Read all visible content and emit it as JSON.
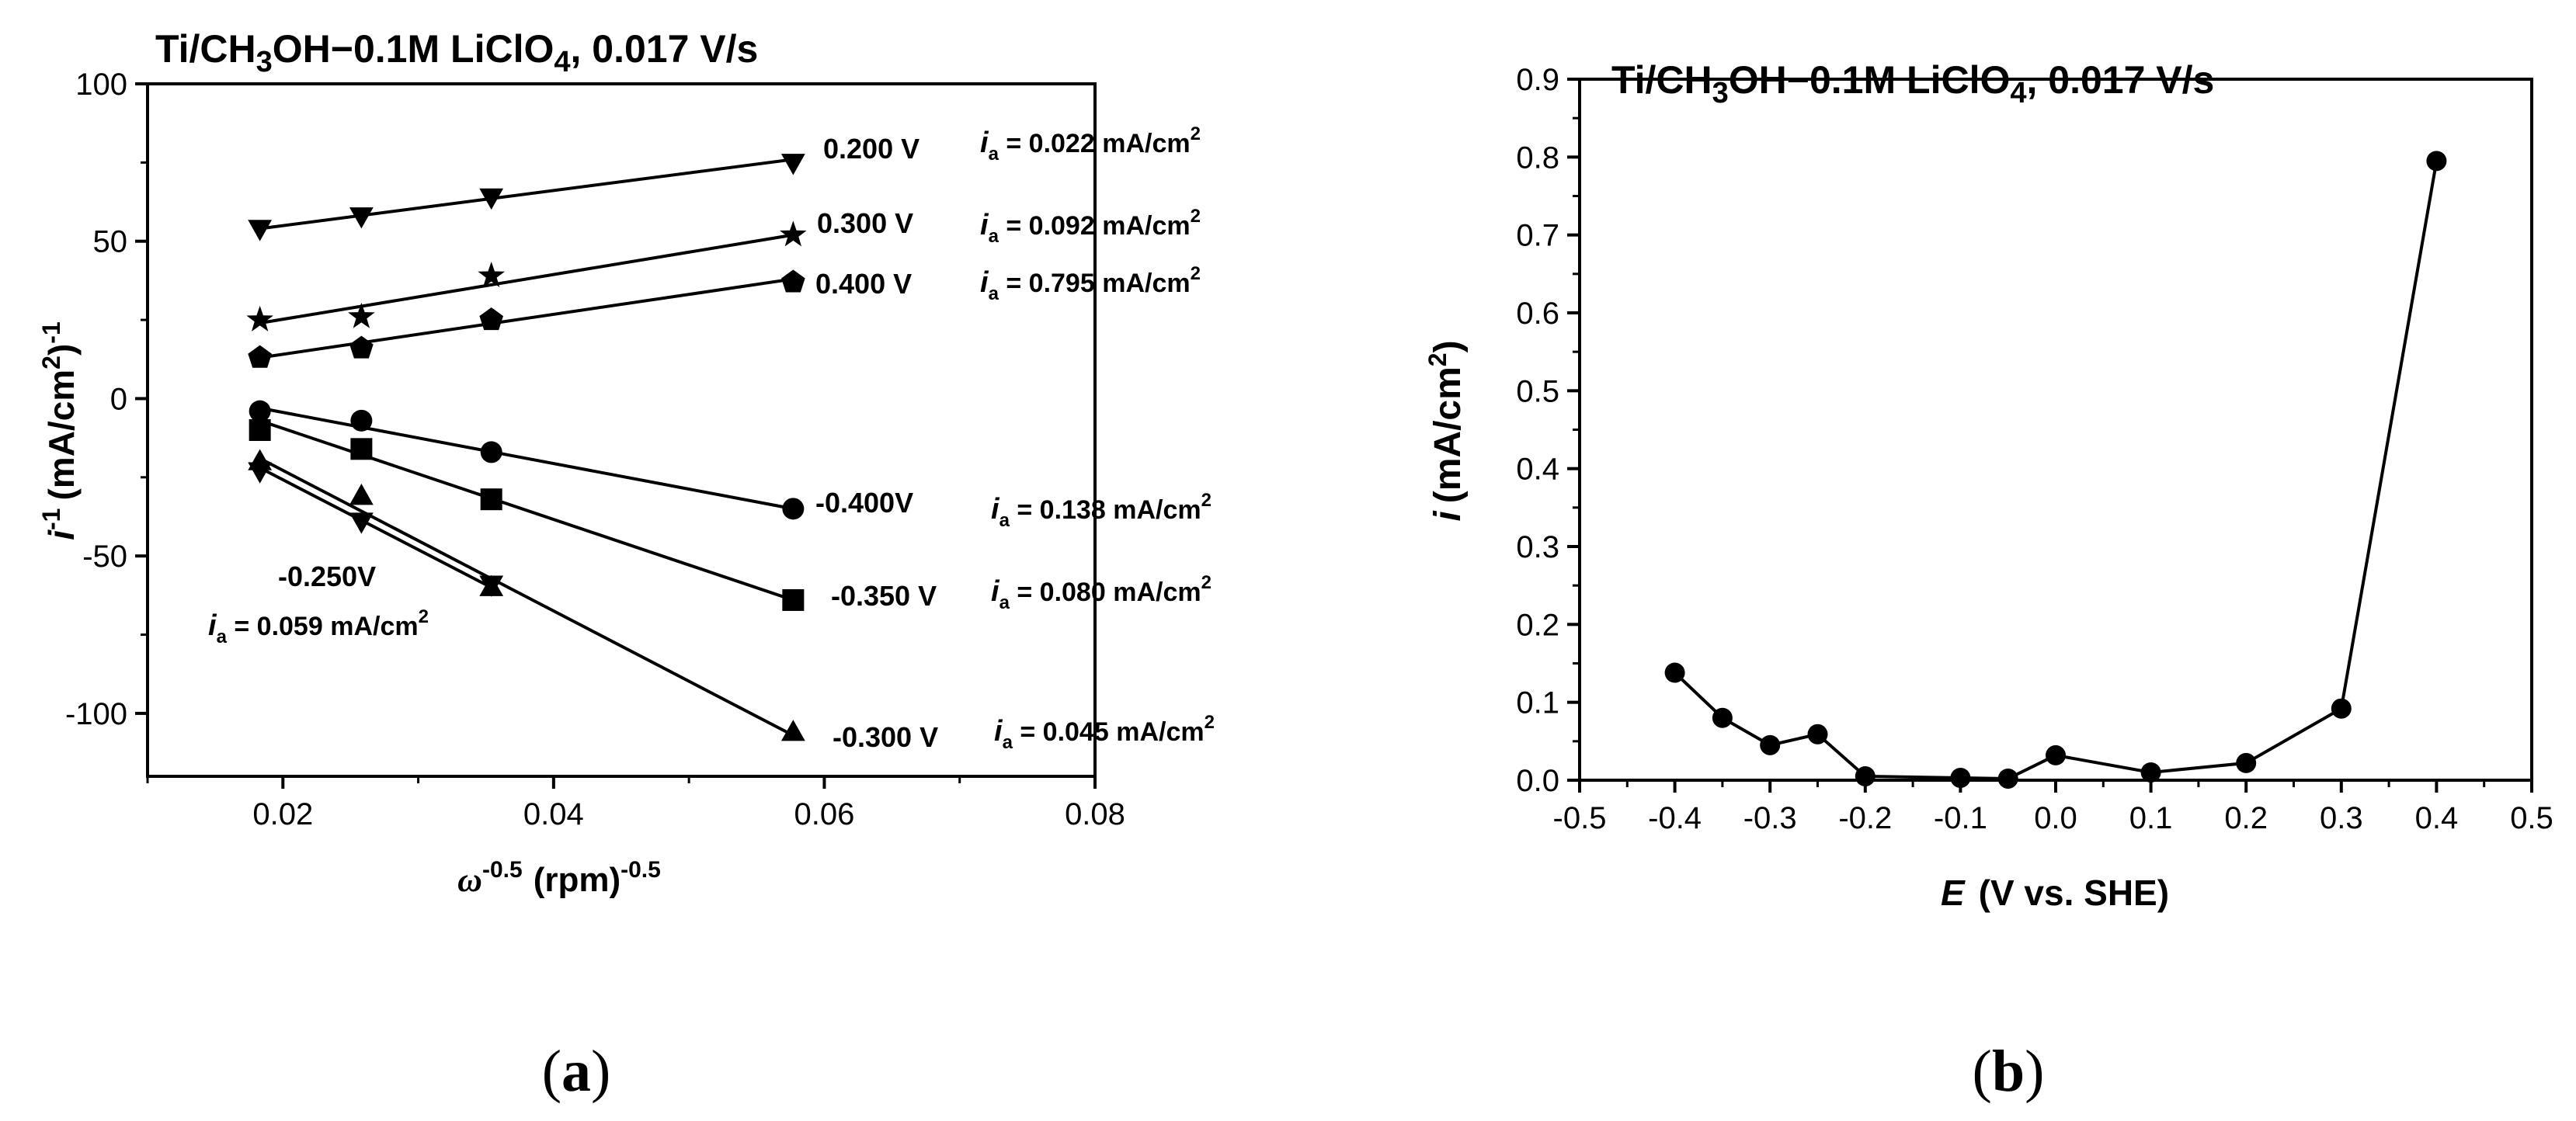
{
  "figure": {
    "panels": [
      {
        "label": "(a)",
        "bold": "a"
      },
      {
        "label": "(b)",
        "bold": "b"
      }
    ]
  },
  "chart_data": [
    {
      "type": "line",
      "panel": "a",
      "title": "Ti/CH3OH−0.1M LiClO4, 0.017 V/s",
      "title_parts": {
        "a": "Ti/CH",
        "sub1": "3",
        "b": "OH−0.1M LiClO",
        "sub2": "4",
        "c": ", 0.017 V/s"
      },
      "xlabel": "ω-0.5 (rpm)-0.5",
      "xlabel_parts": {
        "sym": "ω",
        "sup1": "-0.5",
        "unit": "(rpm)",
        "sup2": "-0.5"
      },
      "ylabel": "i -1 (mA/cm2)-1",
      "ylabel_parts": {
        "sym": "i",
        "sup1": "-1",
        "unit": "(mA/cm",
        "sup2": "2",
        "close": ")",
        "sup3": "-1"
      },
      "xlim": [
        0.01,
        0.08
      ],
      "ylim": [
        -120,
        100
      ],
      "xticks": [
        0.02,
        0.04,
        0.06,
        0.08
      ],
      "xtick_labels": [
        "0.02",
        "0.04",
        "0.06",
        "0.08"
      ],
      "yticks": [
        -100,
        -50,
        0,
        50,
        100
      ],
      "ytick_labels": [
        "-100",
        "-50",
        "0",
        "50",
        "100"
      ],
      "series": [
        {
          "name": "0.200 V",
          "marker": "triangle-down",
          "ia": "0.022",
          "x": [
            0.0183,
            0.0258,
            0.0354,
            0.0577
          ],
          "y": [
            54,
            58,
            64,
            75
          ],
          "fit": [
            [
              0.0183,
              54
            ],
            [
              0.0577,
              76
            ]
          ]
        },
        {
          "name": "0.300 V",
          "marker": "star",
          "ia": "0.092",
          "x": [
            0.0183,
            0.0258,
            0.0354,
            0.0577
          ],
          "y": [
            25,
            26,
            39,
            52
          ],
          "fit": [
            [
              0.0183,
              24
            ],
            [
              0.0577,
              52
            ]
          ]
        },
        {
          "name": "0.400 V",
          "marker": "pentagon",
          "ia": "0.795",
          "x": [
            0.0183,
            0.0258,
            0.0354,
            0.0577
          ],
          "y": [
            13,
            16,
            25,
            37
          ],
          "fit": [
            [
              0.0183,
              13
            ],
            [
              0.0577,
              38
            ]
          ]
        },
        {
          "name": "-0.400V",
          "marker": "circle",
          "ia": "0.138",
          "x": [
            0.0183,
            0.0258,
            0.0354,
            0.0577
          ],
          "y": [
            -4,
            -7,
            -17,
            -35
          ],
          "fit": [
            [
              0.0183,
              -3
            ],
            [
              0.0577,
              -35
            ]
          ]
        },
        {
          "name": "-0.350 V",
          "marker": "square",
          "ia": "0.080",
          "x": [
            0.0183,
            0.0258,
            0.0354,
            0.0577
          ],
          "y": [
            -10,
            -16,
            -32,
            -64
          ],
          "fit": [
            [
              0.0183,
              -7
            ],
            [
              0.0577,
              -64
            ]
          ]
        },
        {
          "name": "-0.300 V",
          "marker": "triangle-up",
          "ia": "0.045",
          "x": [
            0.0183,
            0.0258,
            0.0354,
            0.0577
          ],
          "y": [
            -20,
            -31,
            -60,
            -106
          ],
          "fit": [
            [
              0.0183,
              -19
            ],
            [
              0.0577,
              -107
            ]
          ]
        },
        {
          "name": "-0.250V",
          "marker": "triangle-down",
          "ia": "0.059",
          "x": [
            0.0183,
            0.0258,
            0.0354
          ],
          "y": [
            -23,
            -39,
            -59
          ],
          "fit": [
            [
              0.0183,
              -22
            ],
            [
              0.0354,
              -60
            ]
          ]
        }
      ],
      "annotations": {
        "ia_prefix": "i",
        "ia_sub": "a",
        "ia_eq": " = ",
        "ia_unit": " mA/cm",
        "ia_unit_sup": "2"
      }
    },
    {
      "type": "line",
      "panel": "b",
      "title": "Ti/CH3OH−0.1M LiClO4, 0.017 V/s",
      "title_parts": {
        "a": "Ti/CH",
        "sub1": "3",
        "b": "OH−0.1M LiClO",
        "sub2": "4",
        "c": ", 0.017 V/s"
      },
      "xlabel": "E (V vs. SHE)",
      "xlabel_parts": {
        "sym": "E",
        "unit": "(V vs. SHE)"
      },
      "ylabel": "i (mA/cm2)",
      "ylabel_parts": {
        "sym": "i",
        "unit": "(mA/cm",
        "sup": "2",
        "close": ")"
      },
      "xlim": [
        -0.5,
        0.5
      ],
      "ylim": [
        0,
        0.9
      ],
      "xticks": [
        -0.5,
        -0.4,
        -0.3,
        -0.2,
        -0.1,
        0.0,
        0.1,
        0.2,
        0.3,
        0.4,
        0.5
      ],
      "xtick_labels": [
        "-0.5",
        "-0.4",
        "-0.3",
        "-0.2",
        "-0.1",
        "0.0",
        "0.1",
        "0.2",
        "0.3",
        "0.4",
        "0.5"
      ],
      "yticks": [
        0.0,
        0.1,
        0.2,
        0.3,
        0.4,
        0.5,
        0.6,
        0.7,
        0.8,
        0.9
      ],
      "ytick_labels": [
        "0.0",
        "0.1",
        "0.2",
        "0.3",
        "0.4",
        "0.5",
        "0.6",
        "0.7",
        "0.8",
        "0.9"
      ],
      "series": [
        {
          "name": "i",
          "marker": "circle",
          "x": [
            -0.4,
            -0.35,
            -0.3,
            -0.25,
            -0.2,
            -0.1,
            -0.05,
            0.0,
            0.1,
            0.2,
            0.3,
            0.4
          ],
          "y": [
            0.138,
            0.08,
            0.045,
            0.059,
            0.005,
            0.003,
            0.002,
            0.032,
            0.01,
            0.022,
            0.092,
            0.795
          ]
        }
      ]
    }
  ]
}
